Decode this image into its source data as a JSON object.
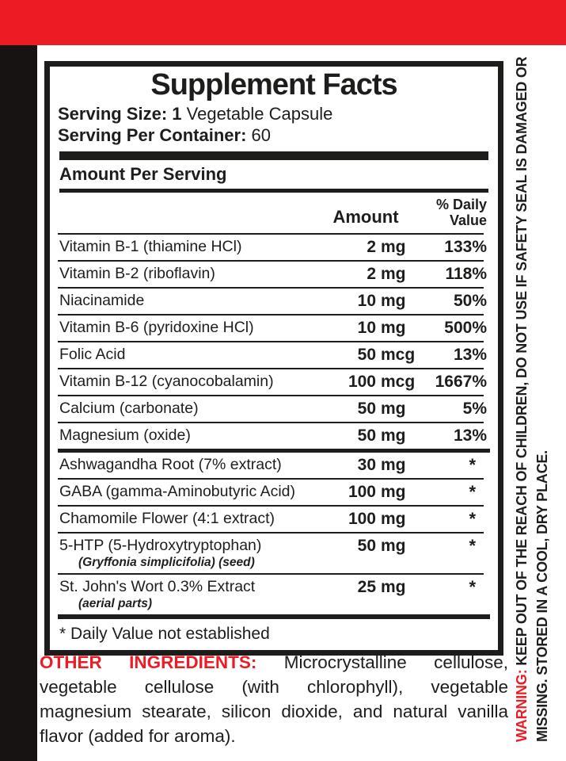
{
  "colors": {
    "accent_red": "#ed1c24",
    "ink_black": "#1d1d1b",
    "side_bar_black": "#161312"
  },
  "header": {
    "title": "Supplement Facts",
    "serving_size_label": "Serving Size: 1",
    "serving_size_value": "Vegetable Capsule",
    "servings_label": "Serving Per Container:",
    "servings_value": "60",
    "amount_per_serving": "Amount Per Serving",
    "col_amount": "Amount",
    "col_dv_line1": "% Daily",
    "col_dv_line2": "Value"
  },
  "rows": [
    {
      "name": "Vitamin B-1 (thiamine HCl)",
      "amount": "2",
      "unit": "mg",
      "dv": "133%"
    },
    {
      "name": "Vitamin B-2 (riboflavin)",
      "amount": "2",
      "unit": "mg",
      "dv": "118%"
    },
    {
      "name": "Niacinamide",
      "amount": "10",
      "unit": "mg",
      "dv": "50%"
    },
    {
      "name": "Vitamin B-6 (pyridoxine HCl)",
      "amount": "10",
      "unit": "mg",
      "dv": "500%"
    },
    {
      "name": "Folic Acid",
      "amount": "50",
      "unit": "mcg",
      "dv": "13%"
    },
    {
      "name": "Vitamin B-12 (cyanocobalamin)",
      "amount": "100",
      "unit": "mcg",
      "dv": "1667%"
    },
    {
      "name": "Calcium (carbonate)",
      "amount": "50",
      "unit": "mg",
      "dv": "5%"
    },
    {
      "name": "Magnesium (oxide)",
      "amount": "50",
      "unit": "mg",
      "dv": "13%"
    },
    {
      "name": "Ashwagandha Root (7% extract)",
      "amount": "30",
      "unit": "mg",
      "dv": "*"
    },
    {
      "name": "GABA (gamma-Aminobutyric Acid)",
      "amount": "100",
      "unit": "mg",
      "dv": "*"
    },
    {
      "name": "Chamomile Flower (4:1 extract)",
      "amount": "100",
      "unit": "mg",
      "dv": "*"
    },
    {
      "name": "5-HTP (5-Hydroxytryptophan)",
      "sub": "(Gryffonia simplicifolia) (seed)",
      "amount": "50",
      "unit": "mg",
      "dv": "*"
    },
    {
      "name": "St. John's Wort 0.3% Extract",
      "sub": "(aerial parts)",
      "amount": "25",
      "unit": "mg",
      "dv": "*"
    }
  ],
  "footnote": "* Daily Value not established",
  "other_ingredients": {
    "label": "OTHER INGREDIENTS:",
    "text": " Microcrystalline cellulose, vegetable cellulose (with chlorophyll), vegetable magnesium stearate, silicon dioxide, and natural vanilla flavor (added for aroma)."
  },
  "warning": {
    "label": "WARNING:",
    "line1_rest": " KEEP OUT OF THE REACH OF CHILDREN, DO NOT USE IF SAFETY SEAL IS DAMAGED OR",
    "line2": "MISSING. STORED IN A COOL, DRY PLACE."
  }
}
